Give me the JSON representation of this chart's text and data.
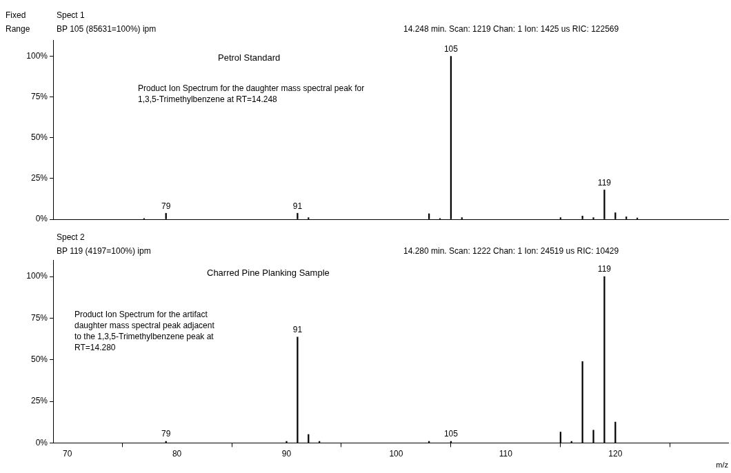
{
  "chart_data": [
    {
      "type": "bar",
      "title": "Petrol Standard",
      "color": "#000000",
      "grid": false,
      "tick_labels": "y",
      "annotations": [
        "Fixed",
        "Range",
        "Spect 1",
        "BP 105 (85631=100%) ipm",
        "14.248 min. Scan: 1219 Chan: 1 Ion: 1425 us RIC: 122569",
        "Product Ion Spectrum for the daughter mass spectral peak for 1,3,5-Trimethylbenzene at RT=14.248",
        {
          "text": "79",
          "x": 79,
          "y": 3.7
        },
        {
          "text": "91",
          "x": 91,
          "y": 3.7
        },
        {
          "text": "105",
          "x": 105,
          "y": 100
        },
        {
          "text": "119",
          "x": 119,
          "y": 18
        }
      ],
      "x": [
        77,
        79,
        91,
        92,
        103,
        104,
        105,
        106,
        115,
        117,
        118,
        119,
        120,
        121,
        122
      ],
      "values": [
        0.5,
        3.7,
        3.7,
        1,
        3.4,
        0.5,
        100,
        1,
        1,
        2,
        1,
        18,
        4,
        1.5,
        0.8
      ],
      "xlim": [
        68.7,
        130.3
      ],
      "xticks": [
        70,
        80,
        90,
        100,
        110,
        120
      ],
      "ylim": [
        0,
        110
      ],
      "yticks": [
        {
          "value": 0,
          "label": "0%"
        },
        {
          "value": 25,
          "label": "25%"
        },
        {
          "value": 50,
          "label": "50%"
        },
        {
          "value": 75,
          "label": "75%"
        },
        {
          "value": 100,
          "label": "100%"
        }
      ]
    },
    {
      "type": "bar",
      "title": "Charred Pine Planking Sample",
      "color": "#000000",
      "grid": false,
      "xlabel": "m/z",
      "annotations": [
        "Spect 2",
        "BP 119 (4197=100%) ipm",
        "14.280 min. Scan: 1222 Chan: 1 Ion: 24519 us RIC: 10429",
        "Product Ion Spectrum for the artifact daughter mass spectral peak adjacent to the 1,3,5-Trimethylbenzene peak at RT=14.280",
        {
          "text": "79",
          "x": 79,
          "y": 1
        },
        {
          "text": "91",
          "x": 91,
          "y": 63.7
        },
        {
          "text": "105",
          "x": 105,
          "y": 1
        },
        {
          "text": "119",
          "x": 119,
          "y": 100
        }
      ],
      "x": [
        79,
        90,
        91,
        92,
        93,
        103,
        105,
        115,
        116,
        117,
        118,
        119,
        120
      ],
      "values": [
        1,
        1,
        63.7,
        5.1,
        1,
        1,
        1,
        6.6,
        1,
        48.9,
        7.7,
        100,
        12.6
      ],
      "xlim": [
        68.7,
        130.3
      ],
      "xticks": [
        70,
        80,
        90,
        100,
        110,
        120
      ],
      "ylim": [
        0,
        110
      ],
      "yticks": [
        {
          "value": 0,
          "label": "0%"
        },
        {
          "value": 25,
          "label": "25%"
        },
        {
          "value": 50,
          "label": "50%"
        },
        {
          "value": 75,
          "label": "75%"
        },
        {
          "value": 100,
          "label": "100%"
        }
      ]
    }
  ]
}
